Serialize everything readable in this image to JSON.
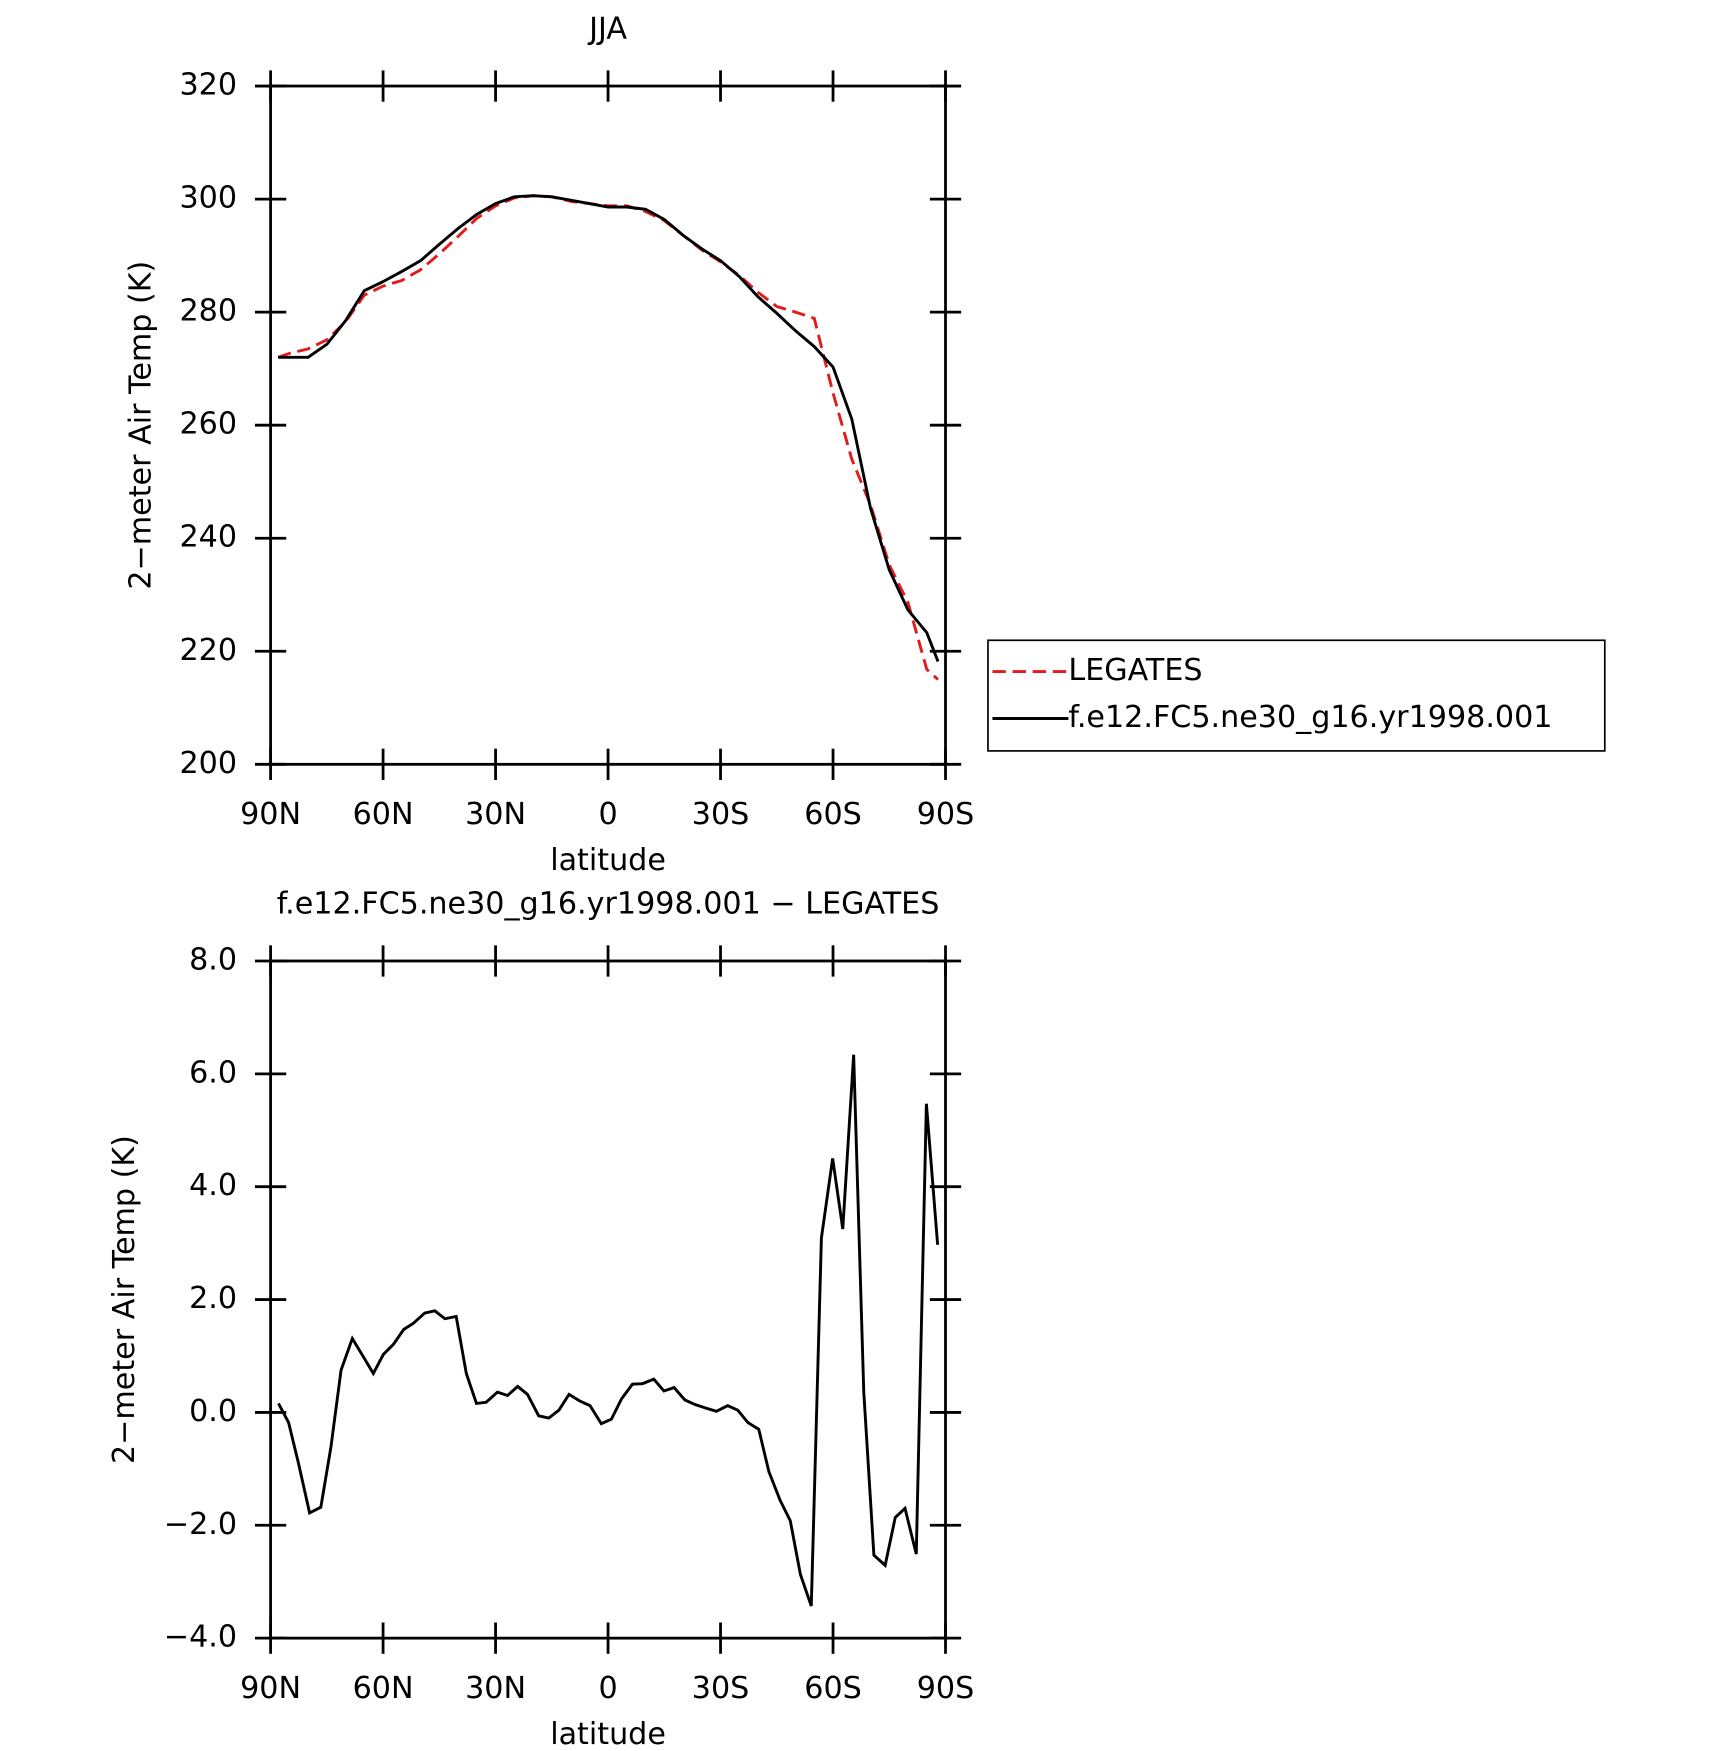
{
  "chart_data": [
    {
      "type": "line",
      "title": "JJA",
      "xlabel": "latitude",
      "ylabel": "2−meter Air Temp (K)",
      "xlim": [
        90,
        -90
      ],
      "xticks": [
        {
          "value": 90,
          "label": "90N"
        },
        {
          "value": 60,
          "label": "60N"
        },
        {
          "value": 30,
          "label": "30N"
        },
        0,
        {
          "value": -30,
          "label": "30S"
        },
        {
          "value": -60,
          "label": "60S"
        },
        {
          "value": -90,
          "label": "90S"
        }
      ],
      "ylim": [
        200,
        320
      ],
      "yticks": [
        200,
        220,
        240,
        260,
        280,
        300,
        320
      ],
      "legend": "outside right",
      "x": [
        88,
        85,
        80,
        75,
        70,
        65,
        60,
        55,
        50,
        45,
        40,
        35,
        30,
        25,
        20,
        15,
        10,
        5,
        0,
        -5,
        -10,
        -15,
        -20,
        -25,
        -30,
        -35,
        -40,
        -45,
        -50,
        -55,
        -60,
        -65,
        -70,
        -75,
        -80,
        -85,
        -88
      ],
      "series": [
        {
          "name": "LEGATES",
          "color": "#e41a1c",
          "dash": true,
          "values": [
            272.0,
            272.7,
            273.5,
            275.1,
            278.3,
            283.0,
            284.6,
            285.6,
            287.5,
            290.3,
            293.4,
            296.6,
            298.8,
            300.2,
            300.6,
            300.4,
            299.6,
            299.2,
            298.8,
            298.8,
            297.8,
            296.2,
            293.6,
            291.0,
            288.9,
            286.5,
            283.5,
            281.0,
            280.0,
            278.9,
            265.7,
            254.0,
            245.9,
            235.3,
            228.6,
            216.8,
            215.0
          ]
        },
        {
          "name": "f.e12.FC5.ne30_g16.yr1998.001",
          "color": "#000000",
          "dash": false,
          "values": [
            272.0,
            272.0,
            272.0,
            274.3,
            278.5,
            283.8,
            285.4,
            287.2,
            289.1,
            292.0,
            294.8,
            297.3,
            299.2,
            300.4,
            300.6,
            300.4,
            299.8,
            299.2,
            298.6,
            298.6,
            298.2,
            296.4,
            293.6,
            291.2,
            289.1,
            286.3,
            282.7,
            279.8,
            276.7,
            273.9,
            270.3,
            261.1,
            245.3,
            234.4,
            227.3,
            223.3,
            218.2
          ]
        }
      ]
    },
    {
      "type": "line",
      "title": "f.e12.FC5.ne30_g16.yr1998.001 − LEGATES",
      "xlabel": "latitude",
      "ylabel": "2−meter Air Temp (K)",
      "xlim": [
        90,
        -90
      ],
      "xticks": [
        {
          "value": 90,
          "label": "90N"
        },
        {
          "value": 60,
          "label": "60N"
        },
        {
          "value": 30,
          "label": "30N"
        },
        0,
        {
          "value": -30,
          "label": "30S"
        },
        {
          "value": -60,
          "label": "60S"
        },
        {
          "value": -90,
          "label": "90S"
        }
      ],
      "ylim": [
        -4,
        8
      ],
      "yticks": [
        {
          "value": -4,
          "label": "−4.0"
        },
        {
          "value": -2,
          "label": "−2.0"
        },
        {
          "value": 0,
          "label": "0.0"
        },
        {
          "value": 2,
          "label": "2.0"
        },
        {
          "value": 4,
          "label": "4.0"
        },
        {
          "value": 6,
          "label": "6.0"
        },
        {
          "value": 8,
          "label": "8.0"
        }
      ],
      "x": [
        87.9,
        85.2,
        82.6,
        79.6,
        76.6,
        73.9,
        71.2,
        68.2,
        65.3,
        62.6,
        59.9,
        57.2,
        54.5,
        51.9,
        48.9,
        46.2,
        43.5,
        40.5,
        37.8,
        35.1,
        32.5,
        29.5,
        26.8,
        24.1,
        21.5,
        18.5,
        15.8,
        13.1,
        10.4,
        7.5,
        4.8,
        1.8,
        -0.9,
        -3.6,
        -6.5,
        -9.2,
        -12.2,
        -14.9,
        -17.6,
        -20.5,
        -23.2,
        -25.9,
        -28.9,
        -31.9,
        -34.6,
        -37.3,
        -40.2,
        -42.9,
        -45.9,
        -48.6,
        -51.3,
        -54.2,
        -56.9,
        -59.9,
        -62.6,
        -65.5,
        -68.2,
        -70.9,
        -73.9,
        -76.6,
        -79.2,
        -82.2,
        -84.9,
        -87.9
      ],
      "color": "#000000",
      "values": [
        0.16,
        -0.18,
        -0.89,
        -1.78,
        -1.68,
        -0.61,
        0.75,
        1.31,
        0.99,
        0.69,
        1.03,
        1.21,
        1.47,
        1.58,
        1.76,
        1.8,
        1.66,
        1.7,
        0.69,
        0.16,
        0.18,
        0.36,
        0.3,
        0.46,
        0.32,
        -0.06,
        -0.1,
        0.04,
        0.32,
        0.2,
        0.12,
        -0.2,
        -0.12,
        0.24,
        0.5,
        0.51,
        0.59,
        0.38,
        0.44,
        0.22,
        0.14,
        0.08,
        0.02,
        0.12,
        0.04,
        -0.18,
        -0.3,
        -1.05,
        -1.56,
        -1.92,
        -2.87,
        -3.43,
        3.09,
        4.5,
        3.25,
        6.34,
        0.36,
        -2.53,
        -2.71,
        -1.86,
        -1.7,
        -2.51,
        5.47,
        2.97
      ]
    }
  ]
}
